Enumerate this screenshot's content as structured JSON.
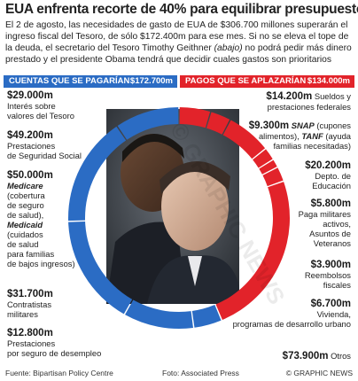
{
  "title": "EUA enfrenta recorte de 40% para equilibrar presupuesto",
  "intro": {
    "part1": "El 2 de agosto, las necesidades de gasto de EUA de $306.700 millones superarán el ingreso fiscal del Tesoro, de sólo $172.400m para ese mes. Si no se eleva el tope de la deuda, el secretario del Tesoro Timothy Geithner ",
    "abajo": "(abajo)",
    "part2": " no podrá pedir más dinero prestado y el presidente Obama tendrá que decidir cuales gastos son prioritarios"
  },
  "paid": {
    "label": "CUENTAS QUE SE PAGARÍAN",
    "amount": "$172.700m",
    "color": "#2b6cc4"
  },
  "deferred": {
    "label": "PAGOS QUE SE APLAZARÍAN",
    "amount": "$134.000m",
    "color": "#e2232a"
  },
  "left_items": [
    {
      "value": "$29.000m",
      "lines": [
        "Interés sobre",
        "valores del Tesoro"
      ]
    },
    {
      "value": "$49.200m",
      "lines": [
        "Prestaciones",
        "de Seguridad Social"
      ]
    },
    {
      "value": "$50.000m",
      "lines": [
        "Medicare",
        "(cobertura",
        "de seguro",
        "de salud),",
        "Medicaid",
        "(cuidados",
        "de salud",
        "para familias",
        "de bajos ingresos)"
      ]
    },
    {
      "value": "$31.700m",
      "lines": [
        "Contratistas",
        "militares"
      ]
    },
    {
      "value": "$12.800m",
      "lines": [
        "Prestaciones",
        "por seguro de desempleo"
      ]
    }
  ],
  "right_items": [
    {
      "value": "$14.200m",
      "lines": [
        "Sueldos y",
        "prestaciones federales"
      ]
    },
    {
      "value": "$9.300m",
      "snap": "SNAP",
      "lines": [
        "(cupones",
        "alimentos),",
        "TANF",
        "(ayuda",
        "familias necesitadas)"
      ]
    },
    {
      "value": "$20.200m",
      "lines": [
        "Depto. de",
        "Educación"
      ]
    },
    {
      "value": "$5.800m",
      "lines": [
        "Paga militares",
        "activos,",
        "Asuntos de",
        "Veteranos"
      ]
    },
    {
      "value": "$3.900m",
      "lines": [
        "Reembolsos",
        "fiscales"
      ]
    },
    {
      "value": "$6.700m",
      "lines": [
        "Vivienda,",
        "programas de desarrollo urbano"
      ]
    },
    {
      "value": "$73.900m",
      "lines": [
        "Otros"
      ]
    }
  ],
  "footer": {
    "source": "Fuente: Bipartisan Policy Centre",
    "photo": "Foto: Associated Press",
    "brand": "© GRAPHIC NEWS"
  },
  "watermark": "© GRAPHIC NEWS"
}
